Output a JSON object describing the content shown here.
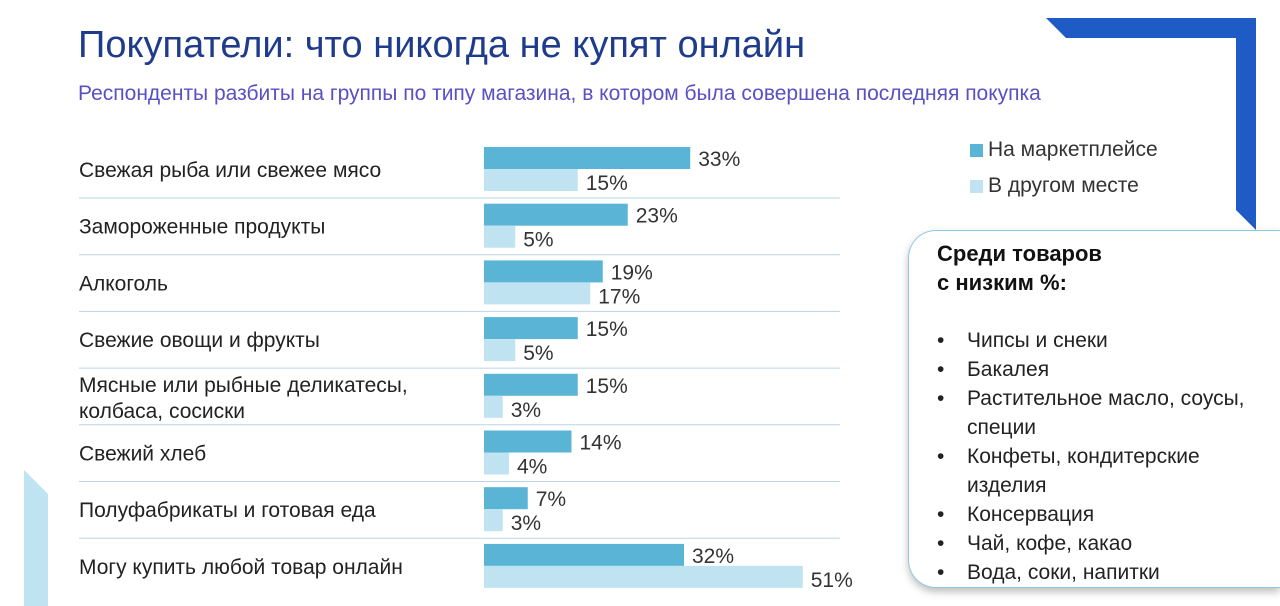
{
  "title": "Покупатели: что никогда не купят онлайн",
  "subtitle": "Респонденты разбиты на группы по типу магазина, в котором была совершена последняя покупка",
  "colors": {
    "marketplace": "#5ab4d6",
    "elsewhere": "#bfe3f0",
    "title": "#1f3b8c",
    "subtitle": "#5a4fc4",
    "accent_deco": "#1f5bc4"
  },
  "legend": {
    "items": [
      {
        "label": "На маркетплейсе",
        "color": "#5ab4d6"
      },
      {
        "label": "В другом месте",
        "color": "#bfe3f0"
      }
    ]
  },
  "chart_data": {
    "type": "bar",
    "orientation": "horizontal",
    "categories": [
      [
        "Свежая рыба или свежее мясо"
      ],
      [
        "Замороженные продукты"
      ],
      [
        "Алкоголь"
      ],
      [
        "Свежие овощи и фрукты"
      ],
      [
        "Мясные или рыбные деликатесы,",
        "колбаса, сосиски"
      ],
      [
        "Свежий хлеб"
      ],
      [
        "Полуфабрикаты и готовая еда"
      ],
      [
        "Могу купить любой товар онлайн"
      ]
    ],
    "series": [
      {
        "name": "На маркетплейсе",
        "values": [
          33,
          23,
          19,
          15,
          15,
          14,
          7,
          32
        ]
      },
      {
        "name": "В другом месте",
        "values": [
          15,
          5,
          17,
          5,
          3,
          4,
          3,
          51
        ]
      }
    ],
    "value_suffix": "%",
    "xlim": [
      0,
      51
    ],
    "legend_position": "top-right",
    "grid": false
  },
  "info_box": {
    "heading_lines": [
      "Среди товаров",
      "с низким %:"
    ],
    "items": [
      "Чипсы и снеки",
      "Бакалея",
      "Растительное масло, соусы, специи",
      "Конфеты, кондитерские изделия",
      "Консервация",
      "Чай, кофе, какао",
      "Вода, соки, напитки"
    ]
  }
}
